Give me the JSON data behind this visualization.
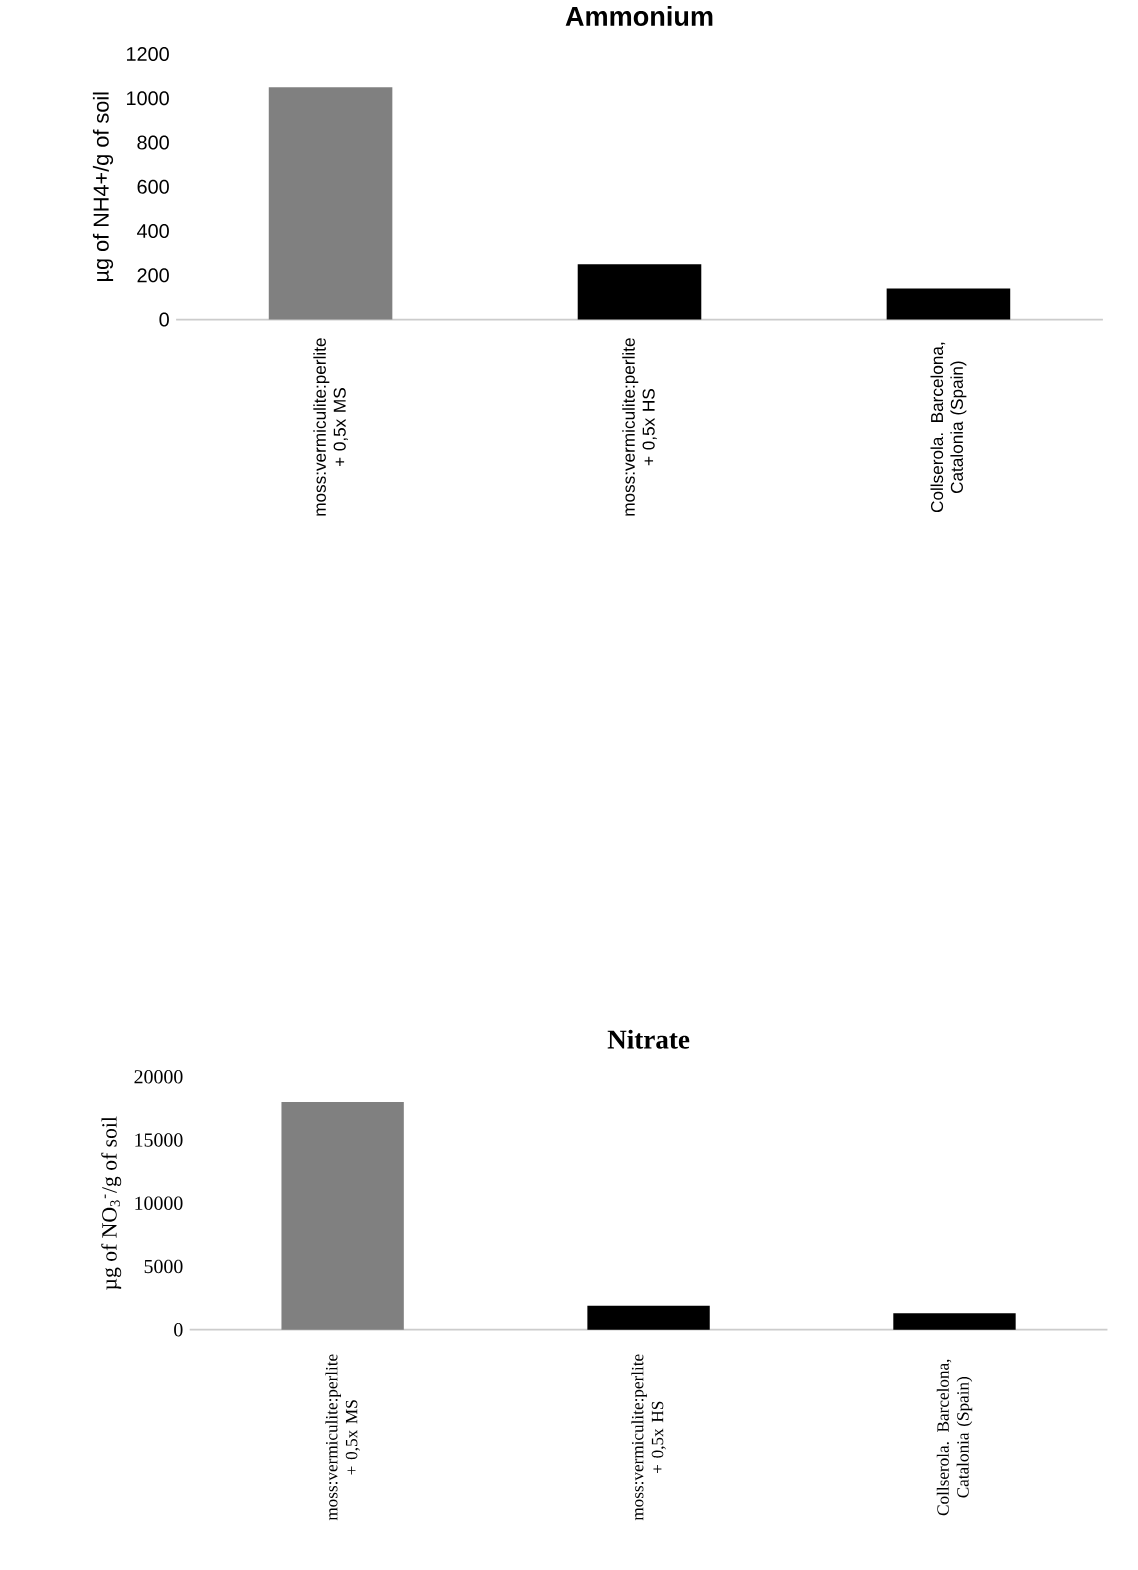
{
  "chart_data": [
    {
      "type": "bar",
      "title": "Ammonium",
      "ylabel": "µg of NH4+/g of soil",
      "categories": [
        "moss:vermiculite:perlite + 0,5x MS",
        "moss:vermiculite:perlite + 0,5x HS",
        "Collserola. Barcelona, Catalonia (Spain)"
      ],
      "values": [
        1050,
        250,
        140
      ],
      "colors": [
        "#808080",
        "#000000",
        "#000000"
      ],
      "ylim": [
        0,
        1200
      ],
      "yticks": [
        0,
        200,
        400,
        600,
        800,
        1000,
        1200
      ]
    },
    {
      "type": "bar",
      "title": "Nitrate",
      "ylabel": "µg of NO$_{3}$$^{-}$/g of soil",
      "categories": [
        "moss:vermiculite:perlite + 0,5x MS",
        "moss:vermiculite:perlite + 0,5x HS",
        "Collserola. Barcelona, Catalonia (Spain)"
      ],
      "values": [
        18000,
        1900,
        1300
      ],
      "colors": [
        "#808080",
        "#000000",
        "#000000"
      ],
      "ylim": [
        0,
        20000
      ],
      "yticks": [
        0,
        5000,
        10000,
        15000,
        20000
      ]
    }
  ]
}
